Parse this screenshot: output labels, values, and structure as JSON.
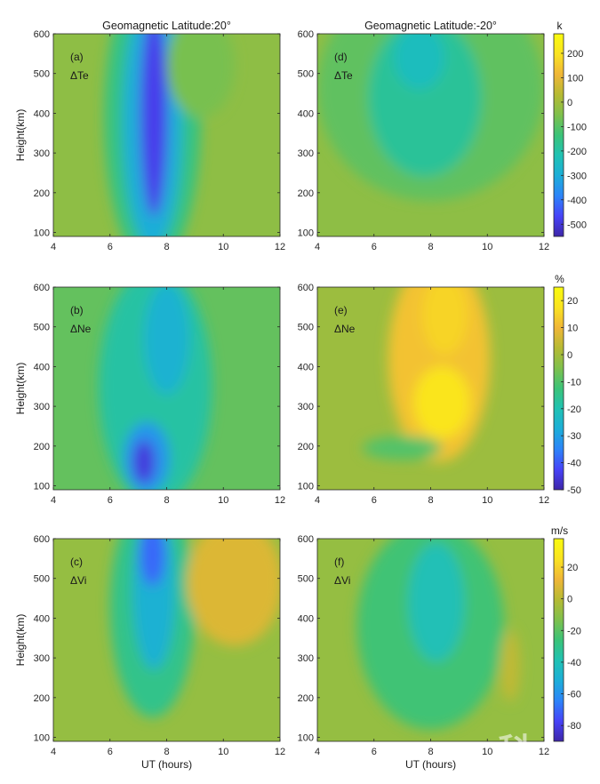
{
  "chart_data": [
    {
      "type": "heatmap",
      "panel": "(a)",
      "quantity": "ΔTe",
      "title": "Geomagnetic Latitude:20°",
      "xlabel": "",
      "ylabel": "Height(km)",
      "xlim": [
        4,
        12
      ],
      "ylim": [
        90,
        600
      ],
      "x_ticks": [
        4,
        6,
        8,
        10,
        12
      ],
      "y_ticks": [
        100,
        200,
        300,
        400,
        500,
        600
      ],
      "colorbar": "te",
      "background": -30,
      "features": [
        {
          "kind": "ellipse",
          "x": 7.5,
          "y": 390,
          "rx": 1.7,
          "ry": 380,
          "value": -150
        },
        {
          "kind": "ellipse",
          "x": 7.5,
          "y": 380,
          "rx": 1.05,
          "ry": 320,
          "value": -300
        },
        {
          "kind": "ellipse",
          "x": 7.55,
          "y": 400,
          "rx": 0.48,
          "ry": 260,
          "value": -480
        },
        {
          "kind": "ellipse",
          "x": 9.2,
          "y": 520,
          "rx": 1.2,
          "ry": 130,
          "value": -60
        }
      ]
    },
    {
      "type": "heatmap",
      "panel": "(d)",
      "quantity": "ΔTe",
      "title": "Geomagnetic Latitude:-20°",
      "xlabel": "",
      "ylabel": "",
      "xlim": [
        4,
        12
      ],
      "ylim": [
        90,
        600
      ],
      "x_ticks": [
        4,
        6,
        8,
        10,
        12
      ],
      "y_ticks": [
        100,
        200,
        300,
        400,
        500,
        600
      ],
      "colorbar": "te",
      "background": -30,
      "features": [
        {
          "kind": "ellipse",
          "x": 8.0,
          "y": 460,
          "rx": 4.0,
          "ry": 280,
          "value": -90
        },
        {
          "kind": "ellipse",
          "x": 7.8,
          "y": 440,
          "rx": 2.0,
          "ry": 200,
          "value": -180
        },
        {
          "kind": "ellipse",
          "x": 7.6,
          "y": 540,
          "rx": 0.9,
          "ry": 80,
          "value": -240
        }
      ]
    },
    {
      "type": "heatmap",
      "panel": "(b)",
      "quantity": "ΔNe",
      "title": "",
      "xlabel": "",
      "ylabel": "Height(km)",
      "xlim": [
        4,
        12
      ],
      "ylim": [
        90,
        600
      ],
      "x_ticks": [
        4,
        6,
        8,
        10,
        12
      ],
      "y_ticks": [
        100,
        200,
        300,
        400,
        500,
        600
      ],
      "colorbar": "ne",
      "background": -8,
      "features": [
        {
          "kind": "ellipse",
          "x": 7.6,
          "y": 350,
          "rx": 2.0,
          "ry": 300,
          "value": -18
        },
        {
          "kind": "ellipse",
          "x": 8.0,
          "y": 470,
          "rx": 0.8,
          "ry": 140,
          "value": -26
        },
        {
          "kind": "ellipse",
          "x": 7.3,
          "y": 170,
          "rx": 0.8,
          "ry": 90,
          "value": -32
        },
        {
          "kind": "ellipse",
          "x": 7.2,
          "y": 160,
          "rx": 0.38,
          "ry": 55,
          "value": -45
        }
      ]
    },
    {
      "type": "heatmap",
      "panel": "(e)",
      "quantity": "ΔNe",
      "title": "",
      "xlabel": "",
      "ylabel": "",
      "xlim": [
        4,
        12
      ],
      "ylim": [
        90,
        600
      ],
      "x_ticks": [
        4,
        6,
        8,
        10,
        12
      ],
      "y_ticks": [
        100,
        200,
        300,
        400,
        500,
        600
      ],
      "colorbar": "ne",
      "background": -1,
      "features": [
        {
          "kind": "ellipse",
          "x": 8.3,
          "y": 420,
          "rx": 1.8,
          "ry": 260,
          "value": 12
        },
        {
          "kind": "ellipse",
          "x": 8.4,
          "y": 310,
          "rx": 1.0,
          "ry": 90,
          "value": 18
        },
        {
          "kind": "ellipse",
          "x": 8.5,
          "y": 530,
          "rx": 0.8,
          "ry": 100,
          "value": 15
        },
        {
          "kind": "ellipse",
          "x": 7.0,
          "y": 195,
          "rx": 1.4,
          "ry": 30,
          "value": -10
        }
      ]
    },
    {
      "type": "heatmap",
      "panel": "(c)",
      "quantity": "ΔVi",
      "title": "",
      "xlabel": "UT (hours)",
      "ylabel": "Height(km)",
      "xlim": [
        4,
        12
      ],
      "ylim": [
        90,
        600
      ],
      "x_ticks": [
        4,
        6,
        8,
        10,
        12
      ],
      "y_ticks": [
        100,
        200,
        300,
        400,
        500,
        600
      ],
      "colorbar": "vi",
      "background": -8,
      "features": [
        {
          "kind": "ellipse",
          "x": 7.5,
          "y": 430,
          "rx": 1.5,
          "ry": 280,
          "value": -30
        },
        {
          "kind": "ellipse",
          "x": 7.55,
          "y": 470,
          "rx": 0.75,
          "ry": 200,
          "value": -50
        },
        {
          "kind": "ellipse",
          "x": 7.5,
          "y": 560,
          "rx": 0.45,
          "ry": 80,
          "value": -70
        },
        {
          "kind": "ellipse",
          "x": 10.4,
          "y": 490,
          "rx": 1.7,
          "ry": 160,
          "value": 8
        }
      ]
    },
    {
      "type": "heatmap",
      "panel": "(f)",
      "quantity": "ΔVi",
      "title": "",
      "xlabel": "UT (hours)",
      "ylabel": "",
      "xlim": [
        4,
        12
      ],
      "ylim": [
        90,
        600
      ],
      "x_ticks": [
        4,
        6,
        8,
        10,
        12
      ],
      "y_ticks": [
        100,
        200,
        300,
        400,
        500,
        600
      ],
      "colorbar": "vi",
      "background": -8,
      "features": [
        {
          "kind": "ellipse",
          "x": 8.0,
          "y": 380,
          "rx": 2.6,
          "ry": 260,
          "value": -25
        },
        {
          "kind": "ellipse",
          "x": 8.2,
          "y": 440,
          "rx": 1.0,
          "ry": 150,
          "value": -40
        },
        {
          "kind": "ellipse",
          "x": 10.8,
          "y": 280,
          "rx": 0.35,
          "ry": 90,
          "value": 2
        }
      ]
    }
  ],
  "colorbars": {
    "te": {
      "unit": "k",
      "range": [
        -550,
        280
      ],
      "ticks": [
        200,
        100,
        0,
        -100,
        -200,
        -300,
        -400,
        -500
      ]
    },
    "ne": {
      "unit": "%",
      "range": [
        -50,
        25
      ],
      "ticks": [
        20,
        10,
        0,
        -10,
        -20,
        -30,
        -40,
        -50
      ]
    },
    "vi": {
      "unit": "m/s",
      "range": [
        -90,
        38
      ],
      "ticks": [
        20,
        0,
        -20,
        -40,
        -60,
        -80
      ]
    }
  },
  "colormap": [
    "#3e26a8",
    "#4743f8",
    "#2c84f9",
    "#1caed8",
    "#20c2b3",
    "#3bc378",
    "#7fc04c",
    "#b6ba33",
    "#f0b637",
    "#fae320",
    "#f9fb0e"
  ],
  "watermark": "科"
}
